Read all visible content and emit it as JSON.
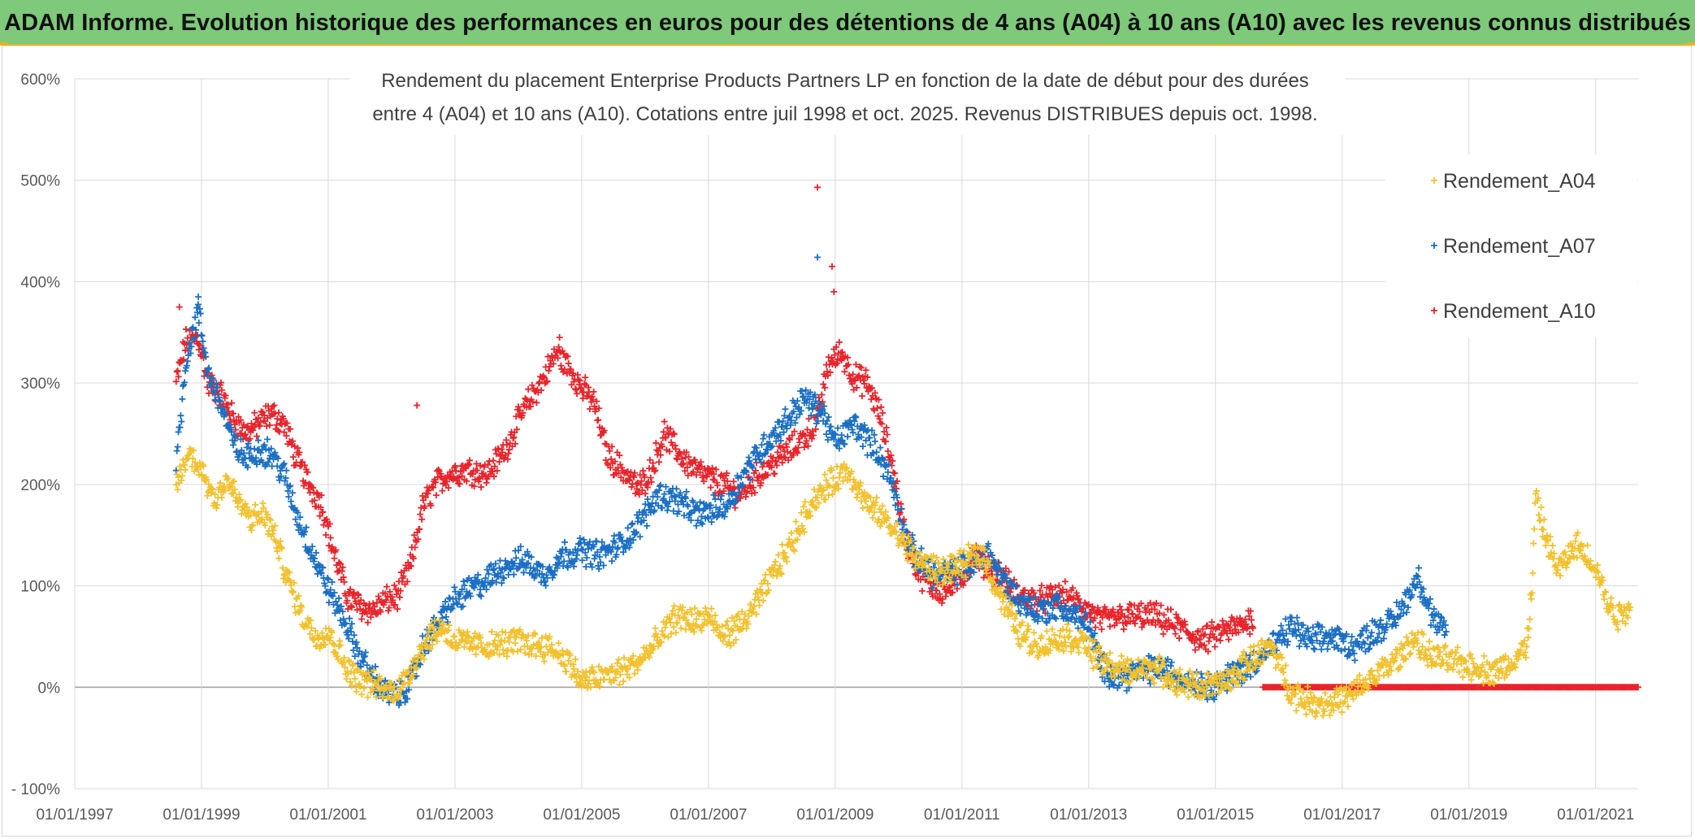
{
  "header": {
    "title": "ADAM Informe. Evolution historique des performances en euros pour des détentions de 4 ans (A04) à 10 ans (A10) avec les revenus connus distribués"
  },
  "chart_data": {
    "type": "scatter",
    "title_lines": [
      "Rendement du placement Enterprise Products Partners LP en fonction de la date de début pour des durées",
      "entre 4 (A04) et 10 ans (A10). Cotations entre juil 1998 et oct. 2025. Revenus DISTRIBUES depuis oct. 1998."
    ],
    "xlabel": "",
    "ylabel": "",
    "x_range": [
      1997.0,
      2021.67
    ],
    "ylim": [
      -100,
      600
    ],
    "y_ticks": [
      -100,
      0,
      100,
      200,
      300,
      400,
      500,
      600
    ],
    "y_tick_labels": [
      "- 100%",
      "0%",
      "100%",
      "200%",
      "300%",
      "400%",
      "500%",
      "600%"
    ],
    "x_ticks": [
      1997,
      1999,
      2001,
      2003,
      2005,
      2007,
      2009,
      2011,
      2013,
      2015,
      2017,
      2019,
      2021
    ],
    "x_tick_labels": [
      "01/01/1997",
      "01/01/1999",
      "01/01/2001",
      "01/01/2003",
      "01/01/2005",
      "01/01/2007",
      "01/01/2009",
      "01/01/2011",
      "01/01/2013",
      "01/01/2015",
      "01/01/2017",
      "01/01/2019",
      "01/01/2021"
    ],
    "grid": true,
    "legend_position": "top-right",
    "marker": "+",
    "series": [
      {
        "name": "Rendement_A04",
        "color": "#f2c12e",
        "start": 1998.6,
        "end": 2021.55,
        "points": [
          [
            1998.6,
            200
          ],
          [
            1998.8,
            230
          ],
          [
            1999.0,
            215
          ],
          [
            1999.2,
            185
          ],
          [
            1999.4,
            205
          ],
          [
            1999.6,
            180
          ],
          [
            1999.8,
            165
          ],
          [
            2000.0,
            170
          ],
          [
            2000.2,
            140
          ],
          [
            2000.4,
            100
          ],
          [
            2000.6,
            70
          ],
          [
            2000.8,
            50
          ],
          [
            2001.0,
            55
          ],
          [
            2001.2,
            30
          ],
          [
            2001.4,
            10
          ],
          [
            2001.6,
            5
          ],
          [
            2001.8,
            0
          ],
          [
            2002.0,
            -5
          ],
          [
            2002.2,
            5
          ],
          [
            2002.4,
            30
          ],
          [
            2002.6,
            50
          ],
          [
            2002.8,
            60
          ],
          [
            2003.0,
            45
          ],
          [
            2003.5,
            40
          ],
          [
            2004.0,
            45
          ],
          [
            2004.5,
            40
          ],
          [
            2004.8,
            25
          ],
          [
            2005.0,
            5
          ],
          [
            2005.3,
            10
          ],
          [
            2005.6,
            15
          ],
          [
            2005.9,
            25
          ],
          [
            2006.2,
            45
          ],
          [
            2006.5,
            70
          ],
          [
            2006.8,
            65
          ],
          [
            2007.0,
            70
          ],
          [
            2007.2,
            50
          ],
          [
            2007.5,
            60
          ],
          [
            2007.8,
            85
          ],
          [
            2008.0,
            110
          ],
          [
            2008.3,
            140
          ],
          [
            2008.6,
            180
          ],
          [
            2008.9,
            200
          ],
          [
            2009.2,
            215
          ],
          [
            2009.5,
            180
          ],
          [
            2009.8,
            165
          ],
          [
            2010.1,
            140
          ],
          [
            2010.4,
            120
          ],
          [
            2010.7,
            115
          ],
          [
            2011.0,
            120
          ],
          [
            2011.3,
            135
          ],
          [
            2011.6,
            90
          ],
          [
            2011.9,
            55
          ],
          [
            2012.2,
            40
          ],
          [
            2012.6,
            50
          ],
          [
            2012.9,
            45
          ],
          [
            2013.2,
            25
          ],
          [
            2013.6,
            15
          ],
          [
            2014.0,
            20
          ],
          [
            2014.4,
            5
          ],
          [
            2014.8,
            0
          ],
          [
            2015.2,
            5
          ],
          [
            2015.6,
            30
          ],
          [
            2015.9,
            40
          ],
          [
            2016.2,
            -5
          ],
          [
            2016.5,
            -15
          ],
          [
            2016.8,
            -15
          ],
          [
            2017.1,
            -10
          ],
          [
            2017.4,
            5
          ],
          [
            2017.7,
            20
          ],
          [
            2018.0,
            35
          ],
          [
            2018.1,
            50
          ],
          [
            2018.4,
            30
          ],
          [
            2018.8,
            25
          ],
          [
            2019.1,
            20
          ],
          [
            2019.4,
            15
          ],
          [
            2019.7,
            25
          ],
          [
            2019.9,
            40
          ],
          [
            2020.0,
            95
          ],
          [
            2020.05,
            190
          ],
          [
            2020.15,
            160
          ],
          [
            2020.4,
            115
          ],
          [
            2020.7,
            140
          ],
          [
            2021.0,
            120
          ],
          [
            2021.2,
            80
          ],
          [
            2021.35,
            70
          ],
          [
            2021.55,
            80
          ]
        ]
      },
      {
        "name": "Rendement_A07",
        "color": "#1a6fc4",
        "start": 1998.6,
        "end": 2018.65,
        "points": [
          [
            1998.6,
            220
          ],
          [
            1998.75,
            320
          ],
          [
            1998.95,
            370
          ],
          [
            1999.1,
            310
          ],
          [
            1999.3,
            280
          ],
          [
            1999.5,
            240
          ],
          [
            1999.7,
            225
          ],
          [
            1999.9,
            235
          ],
          [
            2000.1,
            230
          ],
          [
            2000.3,
            210
          ],
          [
            2000.5,
            170
          ],
          [
            2000.7,
            140
          ],
          [
            2000.9,
            110
          ],
          [
            2001.1,
            85
          ],
          [
            2001.3,
            60
          ],
          [
            2001.5,
            30
          ],
          [
            2001.7,
            10
          ],
          [
            2001.9,
            -5
          ],
          [
            2002.1,
            -10
          ],
          [
            2002.3,
            5
          ],
          [
            2002.5,
            40
          ],
          [
            2002.7,
            60
          ],
          [
            2002.9,
            80
          ],
          [
            2003.2,
            95
          ],
          [
            2003.5,
            105
          ],
          [
            2003.8,
            120
          ],
          [
            2004.1,
            125
          ],
          [
            2004.4,
            110
          ],
          [
            2004.7,
            130
          ],
          [
            2005.0,
            135
          ],
          [
            2005.3,
            130
          ],
          [
            2005.6,
            140
          ],
          [
            2005.9,
            160
          ],
          [
            2006.2,
            190
          ],
          [
            2006.5,
            185
          ],
          [
            2006.8,
            170
          ],
          [
            2007.1,
            175
          ],
          [
            2007.3,
            180
          ],
          [
            2007.6,
            215
          ],
          [
            2007.9,
            240
          ],
          [
            2008.2,
            260
          ],
          [
            2008.5,
            285
          ],
          [
            2008.8,
            270
          ],
          [
            2009.0,
            240
          ],
          [
            2009.3,
            260
          ],
          [
            2009.5,
            245
          ],
          [
            2009.7,
            230
          ],
          [
            2009.9,
            200
          ],
          [
            2010.1,
            150
          ],
          [
            2010.3,
            125
          ],
          [
            2010.6,
            110
          ],
          [
            2010.9,
            115
          ],
          [
            2011.2,
            120
          ],
          [
            2011.4,
            135
          ],
          [
            2011.6,
            110
          ],
          [
            2011.9,
            85
          ],
          [
            2012.2,
            75
          ],
          [
            2012.5,
            80
          ],
          [
            2012.8,
            70
          ],
          [
            2013.0,
            60
          ],
          [
            2013.2,
            20
          ],
          [
            2013.5,
            10
          ],
          [
            2013.8,
            15
          ],
          [
            2014.1,
            20
          ],
          [
            2014.4,
            10
          ],
          [
            2014.7,
            5
          ],
          [
            2014.9,
            0
          ],
          [
            2015.2,
            10
          ],
          [
            2015.5,
            20
          ],
          [
            2015.8,
            35
          ],
          [
            2016.0,
            45
          ],
          [
            2016.2,
            60
          ],
          [
            2016.5,
            45
          ],
          [
            2016.8,
            50
          ],
          [
            2017.0,
            45
          ],
          [
            2017.2,
            40
          ],
          [
            2017.5,
            55
          ],
          [
            2017.8,
            65
          ],
          [
            2018.0,
            85
          ],
          [
            2018.2,
            110
          ],
          [
            2018.35,
            80
          ],
          [
            2018.5,
            60
          ],
          [
            2018.65,
            55
          ]
        ]
      },
      {
        "name": "Rendement_A10",
        "color": "#e8242b",
        "start": 1998.6,
        "end": 2021.67,
        "points": [
          [
            1998.6,
            300
          ],
          [
            1998.75,
            340
          ],
          [
            1998.95,
            345
          ],
          [
            1999.1,
            300
          ],
          [
            1999.3,
            290
          ],
          [
            1999.5,
            265
          ],
          [
            1999.7,
            250
          ],
          [
            1999.9,
            260
          ],
          [
            2000.1,
            270
          ],
          [
            2000.3,
            260
          ],
          [
            2000.5,
            225
          ],
          [
            2000.7,
            200
          ],
          [
            2000.9,
            180
          ],
          [
            2001.1,
            130
          ],
          [
            2001.3,
            90
          ],
          [
            2001.5,
            80
          ],
          [
            2001.7,
            75
          ],
          [
            2001.9,
            85
          ],
          [
            2002.1,
            90
          ],
          [
            2002.3,
            120
          ],
          [
            2002.5,
            180
          ],
          [
            2002.7,
            200
          ],
          [
            2002.9,
            210
          ],
          [
            2003.2,
            215
          ],
          [
            2003.5,
            210
          ],
          [
            2003.8,
            235
          ],
          [
            2004.1,
            275
          ],
          [
            2004.4,
            305
          ],
          [
            2004.6,
            330
          ],
          [
            2004.8,
            315
          ],
          [
            2005.0,
            295
          ],
          [
            2005.2,
            280
          ],
          [
            2005.4,
            230
          ],
          [
            2005.7,
            210
          ],
          [
            2005.9,
            195
          ],
          [
            2006.1,
            215
          ],
          [
            2006.3,
            250
          ],
          [
            2006.6,
            225
          ],
          [
            2006.9,
            210
          ],
          [
            2007.2,
            200
          ],
          [
            2007.5,
            190
          ],
          [
            2007.8,
            210
          ],
          [
            2008.1,
            225
          ],
          [
            2008.4,
            240
          ],
          [
            2008.7,
            260
          ],
          [
            2008.9,
            320
          ],
          [
            2009.1,
            330
          ],
          [
            2009.3,
            305
          ],
          [
            2009.5,
            300
          ],
          [
            2009.7,
            270
          ],
          [
            2009.9,
            220
          ],
          [
            2010.1,
            150
          ],
          [
            2010.3,
            115
          ],
          [
            2010.5,
            100
          ],
          [
            2010.7,
            95
          ],
          [
            2010.9,
            100
          ],
          [
            2011.2,
            130
          ],
          [
            2011.4,
            120
          ],
          [
            2011.6,
            110
          ],
          [
            2011.9,
            90
          ],
          [
            2012.2,
            85
          ],
          [
            2012.6,
            90
          ],
          [
            2012.9,
            80
          ],
          [
            2013.2,
            65
          ],
          [
            2013.6,
            70
          ],
          [
            2014.0,
            70
          ],
          [
            2014.4,
            60
          ],
          [
            2014.8,
            45
          ],
          [
            2015.1,
            55
          ],
          [
            2015.4,
            60
          ],
          [
            2015.6,
            70
          ]
        ],
        "flat_zero_from": 2015.75
      }
    ],
    "outliers": [
      {
        "series": "Rendement_A10",
        "x": 2008.72,
        "y": 493
      },
      {
        "series": "Rendement_A07",
        "x": 2008.72,
        "y": 424
      },
      {
        "series": "Rendement_A10",
        "x": 2008.95,
        "y": 415
      },
      {
        "series": "Rendement_A10",
        "x": 2008.98,
        "y": 390
      },
      {
        "series": "Rendement_A10",
        "x": 1998.65,
        "y": 375
      },
      {
        "series": "Rendement_A07",
        "x": 1998.95,
        "y": 385
      },
      {
        "series": "Rendement_A10",
        "x": 2002.4,
        "y": 278
      },
      {
        "series": "Rendement_A10",
        "x": 2004.65,
        "y": 345
      }
    ]
  }
}
